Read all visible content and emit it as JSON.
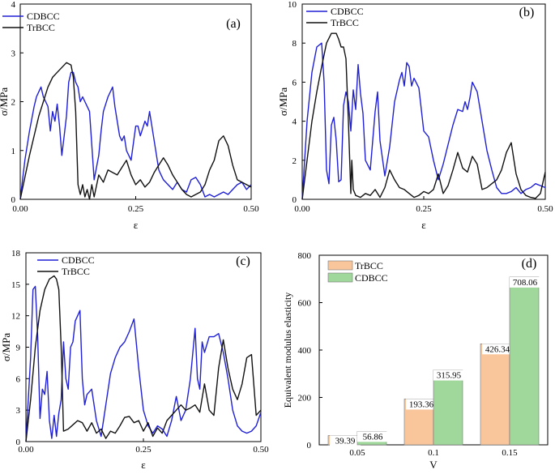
{
  "colors": {
    "cdbcc": "#1f1fd6",
    "trbcc": "#111111",
    "bar_trbcc": "#f9c59b",
    "bar_cdbcc": "#9fd89a"
  },
  "chart_data": [
    {
      "type": "line",
      "panel_label": "(a)",
      "xlabel": "ε",
      "ylabel": "σ/MPa",
      "xlim": [
        0,
        0.5
      ],
      "ylim": [
        0,
        4
      ],
      "xticks": [
        0,
        0.25,
        0.5
      ],
      "xtick_labels": [
        "0.00",
        "0.25",
        "0.50"
      ],
      "yticks": [
        0,
        1,
        2,
        3,
        4
      ],
      "ytick_labels": [
        "0",
        "1",
        "2",
        "3",
        "4"
      ],
      "legend": "top-left",
      "series": [
        {
          "name": "CDBCC",
          "color_key": "cdbcc",
          "x": [
            0,
            0.01,
            0.02,
            0.03,
            0.035,
            0.04,
            0.045,
            0.05,
            0.055,
            0.06,
            0.065,
            0.07,
            0.075,
            0.08,
            0.085,
            0.09,
            0.095,
            0.1,
            0.105,
            0.11,
            0.115,
            0.12,
            0.125,
            0.13,
            0.135,
            0.14,
            0.15,
            0.16,
            0.17,
            0.175,
            0.18,
            0.19,
            0.2,
            0.205,
            0.21,
            0.215,
            0.22,
            0.225,
            0.23,
            0.24,
            0.25,
            0.255,
            0.26,
            0.27,
            0.275,
            0.28,
            0.29,
            0.3,
            0.305,
            0.31,
            0.32,
            0.33,
            0.34,
            0.35,
            0.36,
            0.37,
            0.38,
            0.39,
            0.4,
            0.41,
            0.42,
            0.43,
            0.44,
            0.45,
            0.46,
            0.47,
            0.48,
            0.49,
            0.5
          ],
          "y": [
            0,
            0.8,
            1.4,
            1.9,
            2.1,
            2.2,
            2.3,
            2.1,
            2.0,
            1.9,
            1.4,
            1.8,
            1.6,
            1.95,
            1.5,
            0.9,
            1.3,
            1.7,
            2.4,
            2.6,
            2.6,
            2.4,
            2.3,
            2.0,
            2.1,
            2.0,
            1.8,
            0.4,
            0.9,
            1.4,
            1.8,
            2.1,
            2.3,
            1.9,
            1.6,
            1.3,
            1.2,
            1.3,
            1.0,
            0.8,
            1.5,
            1.5,
            1.3,
            1.6,
            1.5,
            1.8,
            1.2,
            0.6,
            0.5,
            0.4,
            0.3,
            0.2,
            0.35,
            0.2,
            0.15,
            0.4,
            0.45,
            0.3,
            0.05,
            0.1,
            0.05,
            0.1,
            0.15,
            0.1,
            0.2,
            0.3,
            0.35,
            0.2,
            0.3
          ]
        },
        {
          "name": "TrBCC",
          "color_key": "trbcc",
          "x": [
            0,
            0.02,
            0.04,
            0.06,
            0.07,
            0.08,
            0.09,
            0.1,
            0.11,
            0.115,
            0.12,
            0.125,
            0.13,
            0.135,
            0.14,
            0.145,
            0.15,
            0.155,
            0.16,
            0.17,
            0.18,
            0.19,
            0.2,
            0.21,
            0.22,
            0.23,
            0.24,
            0.25,
            0.26,
            0.27,
            0.28,
            0.29,
            0.3,
            0.31,
            0.32,
            0.33,
            0.34,
            0.35,
            0.36,
            0.37,
            0.38,
            0.39,
            0.4,
            0.41,
            0.42,
            0.43,
            0.44,
            0.45,
            0.46,
            0.47,
            0.48,
            0.49,
            0.5
          ],
          "y": [
            0,
            0.9,
            1.7,
            2.3,
            2.5,
            2.6,
            2.7,
            2.8,
            2.75,
            2.5,
            1.8,
            0.3,
            0.1,
            0.3,
            0.05,
            0.2,
            0.0,
            0.3,
            0.05,
            0.5,
            0.35,
            0.6,
            0.55,
            0.5,
            0.65,
            0.8,
            0.5,
            0.3,
            0.4,
            0.25,
            0.35,
            0.55,
            0.7,
            0.85,
            0.7,
            0.5,
            0.35,
            0.2,
            0.1,
            0.05,
            0.1,
            0.15,
            0.3,
            0.6,
            0.8,
            1.2,
            1.3,
            1.1,
            0.7,
            0.4,
            0.35,
            0.3,
            0.25
          ]
        }
      ]
    },
    {
      "type": "line",
      "panel_label": "(b)",
      "xlabel": "ε",
      "ylabel": "σ/MPa",
      "xlim": [
        0,
        0.5
      ],
      "ylim": [
        0,
        10
      ],
      "xticks": [
        0,
        0.25,
        0.5
      ],
      "xtick_labels": [
        "0.00",
        "0.25",
        "0.50"
      ],
      "yticks": [
        0,
        2,
        4,
        6,
        8,
        10
      ],
      "ytick_labels": [
        "0",
        "2",
        "4",
        "6",
        "8",
        "10"
      ],
      "legend": "top-center",
      "series": [
        {
          "name": "CDBCC",
          "color_key": "cdbcc",
          "x": [
            0,
            0.01,
            0.02,
            0.03,
            0.04,
            0.045,
            0.05,
            0.055,
            0.06,
            0.065,
            0.07,
            0.075,
            0.08,
            0.085,
            0.09,
            0.095,
            0.1,
            0.105,
            0.11,
            0.115,
            0.12,
            0.125,
            0.13,
            0.14,
            0.15,
            0.155,
            0.16,
            0.17,
            0.18,
            0.19,
            0.2,
            0.205,
            0.21,
            0.215,
            0.22,
            0.225,
            0.23,
            0.24,
            0.25,
            0.26,
            0.27,
            0.28,
            0.29,
            0.3,
            0.31,
            0.32,
            0.33,
            0.335,
            0.34,
            0.345,
            0.35,
            0.36,
            0.37,
            0.38,
            0.39,
            0.4,
            0.41,
            0.42,
            0.43,
            0.44,
            0.45,
            0.46,
            0.47,
            0.48,
            0.49,
            0.5
          ],
          "y": [
            0,
            4.0,
            6.5,
            7.8,
            8.0,
            6.0,
            1.5,
            0.8,
            3.8,
            4.2,
            3.0,
            0.9,
            1.0,
            4.8,
            5.5,
            5.0,
            3.5,
            5.6,
            4.6,
            6.9,
            5.4,
            4.4,
            2.0,
            1.5,
            4.5,
            5.5,
            3.0,
            1.2,
            2.7,
            5.0,
            6.1,
            6.5,
            5.8,
            7.0,
            6.8,
            5.8,
            6.2,
            5.7,
            3.5,
            3.2,
            2.0,
            1.0,
            1.8,
            2.8,
            3.8,
            4.6,
            4.5,
            5.0,
            4.6,
            5.2,
            6.0,
            5.5,
            4.0,
            2.5,
            1.5,
            0.6,
            0.3,
            0.3,
            0.4,
            0.6,
            0.3,
            0.5,
            0.6,
            0.8,
            0.7,
            0.6
          ]
        },
        {
          "name": "TrBCC",
          "color_key": "trbcc",
          "x": [
            0,
            0.01,
            0.02,
            0.03,
            0.04,
            0.05,
            0.06,
            0.07,
            0.075,
            0.08,
            0.085,
            0.09,
            0.095,
            0.1,
            0.102,
            0.105,
            0.11,
            0.12,
            0.13,
            0.14,
            0.15,
            0.16,
            0.17,
            0.18,
            0.19,
            0.2,
            0.21,
            0.22,
            0.23,
            0.24,
            0.25,
            0.26,
            0.27,
            0.28,
            0.29,
            0.3,
            0.31,
            0.32,
            0.33,
            0.34,
            0.35,
            0.36,
            0.37,
            0.38,
            0.39,
            0.4,
            0.41,
            0.42,
            0.43,
            0.44,
            0.45,
            0.46,
            0.47,
            0.48,
            0.49,
            0.5
          ],
          "y": [
            0,
            2.0,
            4.0,
            5.5,
            6.8,
            8.0,
            8.5,
            8.5,
            8.2,
            7.8,
            7.8,
            7.2,
            4.0,
            0.3,
            2.0,
            0.5,
            0.2,
            0.1,
            0.3,
            0.2,
            0.5,
            0.1,
            0.6,
            1.5,
            1.0,
            0.6,
            0.5,
            0.3,
            0.1,
            0.2,
            0.4,
            0.3,
            0.5,
            1.3,
            0.3,
            0.7,
            1.5,
            2.4,
            1.6,
            1.4,
            2.2,
            1.8,
            0.5,
            0.6,
            0.8,
            1.0,
            1.5,
            2.4,
            2.9,
            1.3,
            0.5,
            0.2,
            0.1,
            0.05,
            0.3,
            1.4
          ]
        }
      ]
    },
    {
      "type": "line",
      "panel_label": "(c)",
      "xlabel": "ε",
      "ylabel": "σ/MPa",
      "xlim": [
        0,
        0.5
      ],
      "ylim": [
        0,
        18
      ],
      "xticks": [
        0,
        0.25,
        0.5
      ],
      "xtick_labels": [
        "0.00",
        "0.25",
        "0.50"
      ],
      "yticks": [
        0,
        3,
        6,
        9,
        12,
        15,
        18
      ],
      "ytick_labels": [
        "0",
        "3",
        "6",
        "9",
        "12",
        "15",
        "18"
      ],
      "legend": "top-center",
      "series": [
        {
          "name": "CDBCC",
          "color_key": "cdbcc",
          "x": [
            0,
            0.01,
            0.015,
            0.02,
            0.025,
            0.03,
            0.035,
            0.04,
            0.045,
            0.05,
            0.055,
            0.06,
            0.065,
            0.07,
            0.075,
            0.08,
            0.085,
            0.09,
            0.095,
            0.1,
            0.105,
            0.11,
            0.115,
            0.12,
            0.125,
            0.13,
            0.14,
            0.15,
            0.16,
            0.17,
            0.18,
            0.19,
            0.2,
            0.21,
            0.22,
            0.23,
            0.24,
            0.25,
            0.26,
            0.27,
            0.28,
            0.29,
            0.3,
            0.31,
            0.32,
            0.33,
            0.34,
            0.35,
            0.36,
            0.365,
            0.37,
            0.375,
            0.38,
            0.39,
            0.4,
            0.41,
            0.42,
            0.43,
            0.44,
            0.45,
            0.46,
            0.47,
            0.48,
            0.49,
            0.5
          ],
          "y": [
            0,
            8.0,
            14.5,
            14.8,
            10.0,
            2.2,
            5.0,
            4.5,
            6.7,
            2.0,
            0.3,
            2.5,
            0.5,
            2.7,
            4.0,
            9.5,
            6.0,
            5.0,
            9.0,
            9.5,
            11.5,
            12.0,
            12.5,
            6.0,
            3.5,
            4.5,
            5.0,
            2.0,
            0.5,
            3.5,
            6.5,
            8.0,
            9.0,
            9.5,
            10.5,
            11.7,
            7.0,
            3.0,
            1.5,
            0.8,
            1.5,
            1.2,
            0.5,
            2.0,
            4.3,
            2.0,
            3.0,
            6.0,
            10.8,
            6.0,
            5.0,
            9.5,
            8.5,
            10.0,
            10.0,
            10.3,
            8.5,
            6.0,
            3.0,
            1.5,
            1.0,
            0.8,
            1.0,
            1.5,
            2.8
          ]
        },
        {
          "name": "TrBCC",
          "color_key": "trbcc",
          "x": [
            0,
            0.01,
            0.02,
            0.03,
            0.04,
            0.05,
            0.06,
            0.065,
            0.07,
            0.075,
            0.08,
            0.09,
            0.1,
            0.11,
            0.12,
            0.13,
            0.14,
            0.15,
            0.16,
            0.17,
            0.18,
            0.19,
            0.2,
            0.21,
            0.22,
            0.23,
            0.24,
            0.25,
            0.26,
            0.27,
            0.28,
            0.29,
            0.3,
            0.31,
            0.32,
            0.33,
            0.34,
            0.35,
            0.36,
            0.37,
            0.38,
            0.39,
            0.4,
            0.41,
            0.42,
            0.43,
            0.44,
            0.45,
            0.46,
            0.47,
            0.48,
            0.49,
            0.5
          ],
          "y": [
            0,
            4.0,
            9.0,
            12.5,
            14.5,
            15.5,
            15.8,
            15.5,
            14.5,
            9.0,
            1.0,
            1.2,
            1.6,
            2.0,
            1.8,
            1.0,
            1.8,
            0.8,
            1.2,
            0.3,
            1.0,
            0.8,
            1.5,
            2.3,
            2.4,
            1.8,
            2.0,
            1.0,
            1.8,
            0.5,
            1.3,
            0.8,
            2.0,
            2.5,
            3.0,
            3.5,
            3.0,
            3.2,
            3.5,
            2.8,
            5.5,
            3.0,
            2.5,
            7.0,
            9.7,
            7.0,
            5.0,
            4.0,
            5.5,
            8.0,
            8.3,
            2.5,
            3.0
          ]
        }
      ]
    },
    {
      "type": "bar",
      "panel_label": "(d)",
      "xlabel": "V",
      "ylabel": "Equivalent modulus elasticity",
      "ylim": [
        0,
        800
      ],
      "yticks": [
        0,
        200,
        400,
        600,
        800
      ],
      "ytick_labels": [
        "0",
        "200",
        "400",
        "600",
        "800"
      ],
      "categories": [
        "0.05",
        "0.1",
        "0.15"
      ],
      "legend": "top-left",
      "series": [
        {
          "name": "TrBCC",
          "color_key": "bar_trbcc",
          "values": [
            39.39,
            193.36,
            426.34
          ],
          "labels": [
            "39.39",
            "193.36",
            "426.34"
          ]
        },
        {
          "name": "CDBCC",
          "color_key": "bar_cdbcc",
          "values": [
            56.86,
            315.95,
            708.06
          ],
          "labels": [
            "56.86",
            "315.95",
            "708.06"
          ]
        }
      ]
    }
  ]
}
